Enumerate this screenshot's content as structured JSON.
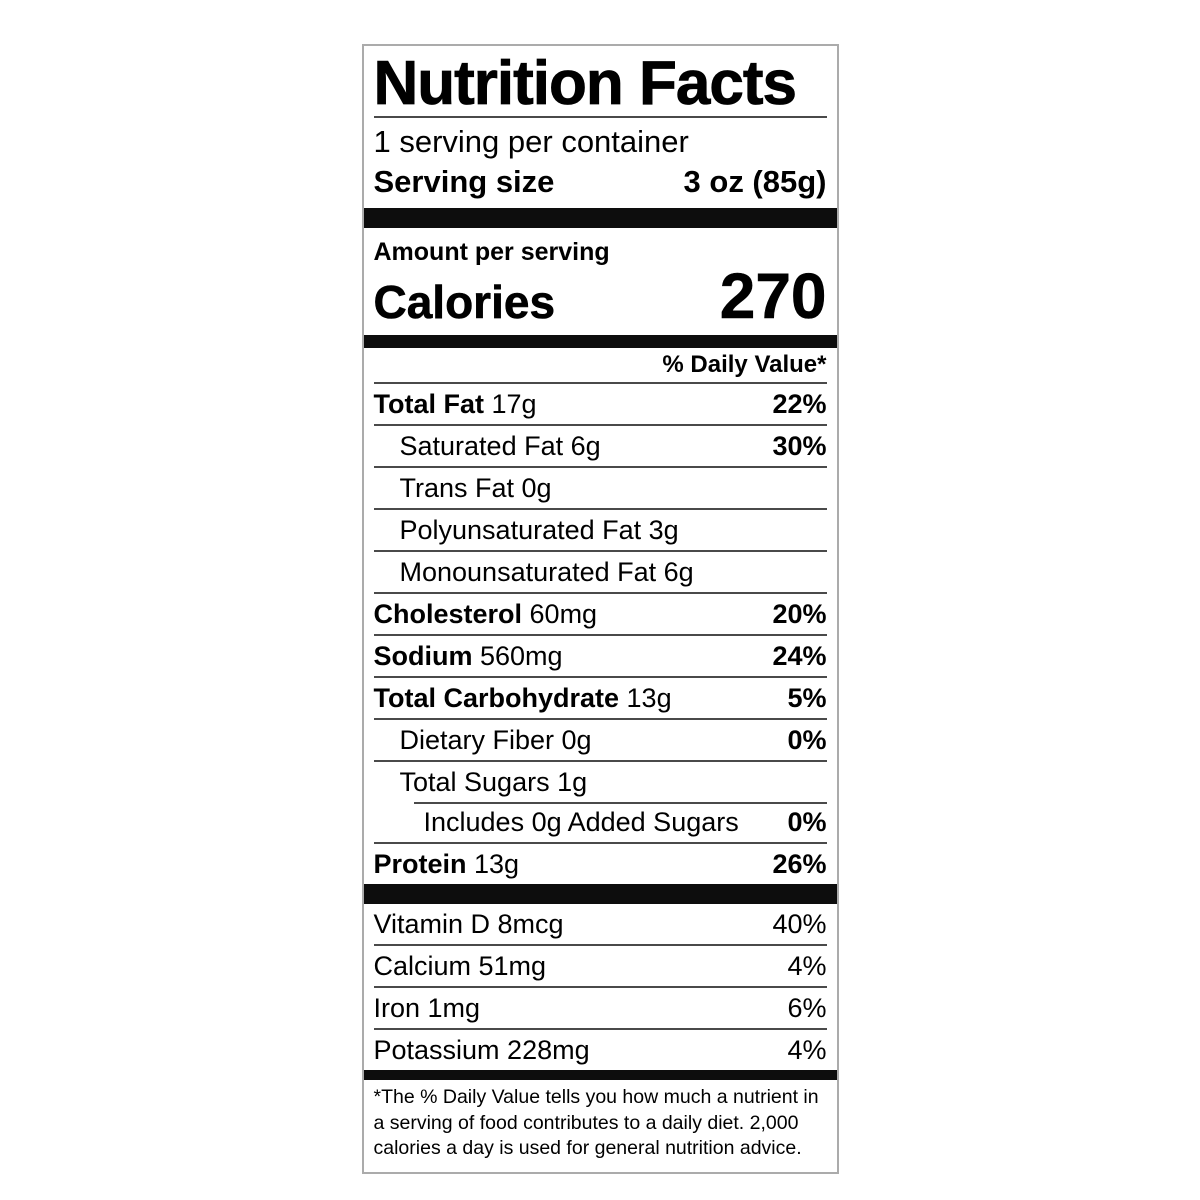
{
  "label": {
    "title": "Nutrition Facts",
    "servings_per_container": "1 serving per container",
    "serving_size_label": "Serving size",
    "serving_size_value": "3 oz (85g)",
    "amount_per_serving": "Amount per serving",
    "calories_label": "Calories",
    "calories_value": "270",
    "daily_value_header": "% Daily Value*",
    "nutrients": [
      {
        "name": "Total Fat",
        "amount": "17g",
        "dv": "22%",
        "bold": true,
        "indent": 0
      },
      {
        "name": "Saturated Fat",
        "amount": "6g",
        "dv": "30%",
        "bold": false,
        "indent": 1
      },
      {
        "name": "Trans Fat",
        "amount": "0g",
        "dv": "",
        "bold": false,
        "indent": 1
      },
      {
        "name": "Polyunsaturated Fat",
        "amount": "3g",
        "dv": "",
        "bold": false,
        "indent": 1
      },
      {
        "name": "Monounsaturated Fat",
        "amount": "6g",
        "dv": "",
        "bold": false,
        "indent": 1
      },
      {
        "name": "Cholesterol",
        "amount": "60mg",
        "dv": "20%",
        "bold": true,
        "indent": 0
      },
      {
        "name": "Sodium",
        "amount": "560mg",
        "dv": "24%",
        "bold": true,
        "indent": 0
      },
      {
        "name": "Total Carbohydrate",
        "amount": "13g",
        "dv": "5%",
        "bold": true,
        "indent": 0
      },
      {
        "name": "Dietary Fiber",
        "amount": "0g",
        "dv": "0%",
        "bold": false,
        "indent": 1
      },
      {
        "name": "Total Sugars",
        "amount": "1g",
        "dv": "",
        "bold": false,
        "indent": 1
      },
      {
        "name": "Includes 0g Added Sugars",
        "amount": "",
        "dv": "0%",
        "bold": false,
        "indent": 2,
        "partial_rule": true
      },
      {
        "name": "Protein",
        "amount": "13g",
        "dv": "26%",
        "bold": true,
        "indent": 0
      }
    ],
    "vitamins": [
      {
        "name": "Vitamin D",
        "amount": "8mcg",
        "dv": "40%"
      },
      {
        "name": "Calcium",
        "amount": "51mg",
        "dv": "4%"
      },
      {
        "name": "Iron",
        "amount": "1mg",
        "dv": "6%"
      },
      {
        "name": "Potassium",
        "amount": "228mg",
        "dv": "4%"
      }
    ],
    "footnote": "*The % Daily Value tells you how much a nutrient in a serving of food contributes to a daily diet. 2,000 calories a day is used for general nutrition advice."
  },
  "colors": {
    "bar": "#0d0d0d",
    "rule": "#4a4a4a",
    "border": "#ababab",
    "text": "#000000"
  }
}
